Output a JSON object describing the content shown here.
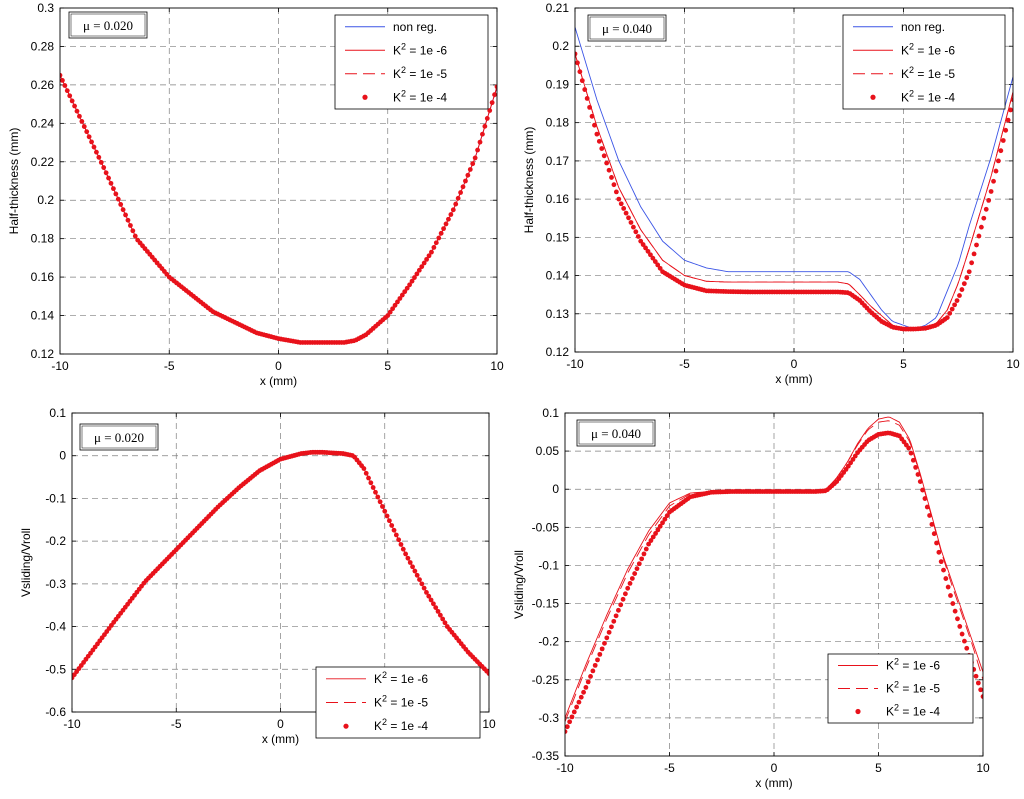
{
  "colors": {
    "red": "#e8121b",
    "blue": "#3b55e6",
    "grid": "#7f7f7f"
  },
  "chart_data": [
    {
      "type": "line",
      "annotation": "μ = 0.020",
      "xlabel": "x (mm)",
      "ylabel": "Half-thickness (mm)",
      "xlim": [
        -10,
        10
      ],
      "ylim": [
        0.12,
        0.3
      ],
      "xticks": [
        -10,
        -5,
        0,
        5,
        10
      ],
      "yticks": [
        0.12,
        0.14,
        0.16,
        0.18,
        0.2,
        0.22,
        0.24,
        0.26,
        0.28,
        0.3
      ],
      "ytick_labels": [
        "0.12",
        "0.14",
        "0.16",
        "0.18",
        "0.2",
        "0.22",
        "0.24",
        "0.26",
        "0.28",
        "0.3"
      ],
      "grid": true,
      "legend_position": "top-right",
      "series": [
        {
          "name": "non reg.",
          "style": "line-blue",
          "x": [
            -10,
            -8,
            -6.5,
            -5,
            -3,
            -1,
            0,
            1,
            2,
            3,
            3.5,
            4,
            5,
            6,
            7,
            8,
            9,
            10
          ],
          "y": [
            0.265,
            0.217,
            0.18,
            0.16,
            0.142,
            0.131,
            0.128,
            0.126,
            0.126,
            0.126,
            0.127,
            0.13,
            0.14,
            0.156,
            0.173,
            0.195,
            0.222,
            0.259
          ]
        },
        {
          "name": "K2 = 1e -6",
          "style": "line-red",
          "x": [
            -10,
            -8,
            -6.5,
            -5,
            -3,
            -1,
            0,
            1,
            2,
            3,
            3.5,
            4,
            5,
            6,
            7,
            8,
            9,
            10
          ],
          "y": [
            0.265,
            0.217,
            0.18,
            0.16,
            0.142,
            0.131,
            0.128,
            0.126,
            0.126,
            0.126,
            0.127,
            0.13,
            0.14,
            0.156,
            0.173,
            0.195,
            0.222,
            0.259
          ]
        },
        {
          "name": "K2 = 1e -5",
          "style": "dash-red",
          "x": [
            -10,
            -8,
            -6.5,
            -5,
            -3,
            -1,
            0,
            1,
            2,
            3,
            3.5,
            4,
            5,
            6,
            7,
            8,
            9,
            10
          ],
          "y": [
            0.265,
            0.217,
            0.18,
            0.16,
            0.142,
            0.131,
            0.128,
            0.126,
            0.126,
            0.126,
            0.127,
            0.13,
            0.14,
            0.156,
            0.173,
            0.195,
            0.222,
            0.259
          ]
        },
        {
          "name": "K2 = 1e -4",
          "style": "dots-red",
          "x": [
            -10,
            -8,
            -6.5,
            -5,
            -3,
            -1,
            0,
            1,
            2,
            3,
            3.5,
            4,
            5,
            6,
            7,
            8,
            9,
            10
          ],
          "y": [
            0.265,
            0.217,
            0.18,
            0.16,
            0.142,
            0.131,
            0.128,
            0.126,
            0.126,
            0.126,
            0.127,
            0.13,
            0.14,
            0.156,
            0.173,
            0.195,
            0.222,
            0.259
          ]
        }
      ]
    },
    {
      "type": "line",
      "annotation": "μ = 0.040",
      "xlabel": "x (mm)",
      "ylabel": "Half-thickness (mm)",
      "xlim": [
        -10,
        10
      ],
      "ylim": [
        0.12,
        0.21
      ],
      "xticks": [
        -10,
        -5,
        0,
        5,
        10
      ],
      "yticks": [
        0.12,
        0.13,
        0.14,
        0.15,
        0.16,
        0.17,
        0.18,
        0.19,
        0.2,
        0.21
      ],
      "ytick_labels": [
        "0.12",
        "0.13",
        "0.14",
        "0.15",
        "0.16",
        "0.17",
        "0.18",
        "0.19",
        "0.2",
        "0.21"
      ],
      "grid": true,
      "legend_position": "top-right",
      "series": [
        {
          "name": "non reg.",
          "style": "line-blue",
          "x": [
            -10,
            -9,
            -8,
            -7,
            -6,
            -5,
            -4,
            -3,
            -2,
            -1,
            0,
            1,
            2,
            2.5,
            3,
            3.5,
            4,
            4.5,
            5,
            5.5,
            6,
            6.5,
            7,
            7.5,
            8,
            9,
            10
          ],
          "y": [
            0.205,
            0.186,
            0.17,
            0.158,
            0.149,
            0.144,
            0.142,
            0.141,
            0.141,
            0.141,
            0.141,
            0.141,
            0.141,
            0.141,
            0.139,
            0.135,
            0.131,
            0.128,
            0.127,
            0.126,
            0.127,
            0.129,
            0.136,
            0.143,
            0.153,
            0.171,
            0.192
          ]
        },
        {
          "name": "K2 = 1e -6",
          "style": "line-red",
          "x": [
            -10,
            -9,
            -8,
            -7,
            -6,
            -5,
            -4,
            -3,
            -2,
            -1,
            0,
            1,
            2,
            2.5,
            3,
            3.5,
            4,
            4.5,
            5,
            5.5,
            6,
            6.5,
            7,
            7.5,
            8,
            9,
            10
          ],
          "y": [
            0.198,
            0.179,
            0.163,
            0.152,
            0.144,
            0.14,
            0.1385,
            0.1383,
            0.1383,
            0.1383,
            0.1383,
            0.1383,
            0.1383,
            0.1378,
            0.135,
            0.132,
            0.1295,
            0.127,
            0.126,
            0.1262,
            0.1265,
            0.1275,
            0.131,
            0.138,
            0.147,
            0.166,
            0.188
          ]
        },
        {
          "name": "K2 = 1e -5",
          "style": "dash-red",
          "x": [
            -10,
            -9,
            -8,
            -7,
            -6,
            -5,
            -4,
            -3,
            -2,
            -1,
            0,
            1,
            2,
            2.5,
            3,
            3.5,
            4,
            4.5,
            5,
            5.5,
            6,
            6.5,
            7,
            7.5,
            8,
            9,
            10
          ],
          "y": [
            0.198,
            0.179,
            0.163,
            0.152,
            0.144,
            0.14,
            0.1385,
            0.1383,
            0.1383,
            0.1383,
            0.1383,
            0.1383,
            0.1383,
            0.1378,
            0.135,
            0.132,
            0.1295,
            0.127,
            0.126,
            0.1262,
            0.1265,
            0.1275,
            0.131,
            0.138,
            0.147,
            0.166,
            0.188
          ]
        },
        {
          "name": "K2 = 1e -4",
          "style": "dots-red",
          "x": [
            -10,
            -9,
            -8,
            -7,
            -6,
            -5,
            -4,
            -3,
            -2,
            -1,
            0,
            1,
            2,
            2.5,
            3,
            3.5,
            4,
            4.5,
            5,
            5.5,
            6,
            6.5,
            7,
            7.5,
            8,
            9,
            10
          ],
          "y": [
            0.198,
            0.177,
            0.16,
            0.149,
            0.141,
            0.1375,
            0.136,
            0.1358,
            0.1357,
            0.1357,
            0.1357,
            0.1357,
            0.1357,
            0.1355,
            0.1335,
            0.1305,
            0.128,
            0.1265,
            0.126,
            0.126,
            0.1262,
            0.127,
            0.129,
            0.134,
            0.141,
            0.162,
            0.186
          ]
        }
      ]
    },
    {
      "type": "line",
      "annotation": "μ = 0.020",
      "xlabel": "x (mm)",
      "ylabel": "Vsliding/Vroll",
      "xlim": [
        -10,
        10
      ],
      "ylim": [
        -0.6,
        0.1
      ],
      "xticks": [
        -10,
        -5,
        0,
        5,
        10
      ],
      "yticks": [
        -0.6,
        -0.5,
        -0.4,
        -0.3,
        -0.2,
        -0.1,
        0,
        0.1
      ],
      "ytick_labels": [
        "-0.6",
        "-0.5",
        "-0.4",
        "-0.3",
        "-0.2",
        "-0.1",
        "0",
        "0.1"
      ],
      "grid": true,
      "legend_position": "bottom-right",
      "series": [
        {
          "name": "K2 = 1e -6",
          "style": "line-red",
          "x": [
            -10,
            -8,
            -6.5,
            -5,
            -3,
            -2,
            -1,
            0,
            1,
            1.5,
            2,
            3,
            3.5,
            4,
            5,
            6,
            7,
            8,
            9,
            10
          ],
          "y": [
            -0.52,
            -0.39,
            -0.295,
            -0.22,
            -0.12,
            -0.075,
            -0.035,
            -0.008,
            0.005,
            0.008,
            0.008,
            0.005,
            0,
            -0.03,
            -0.13,
            -0.23,
            -0.32,
            -0.4,
            -0.46,
            -0.51
          ]
        },
        {
          "name": "K2 = 1e -5",
          "style": "dash-red",
          "x": [
            -10,
            -8,
            -6.5,
            -5,
            -3,
            -2,
            -1,
            0,
            1,
            1.5,
            2,
            3,
            3.5,
            4,
            5,
            6,
            7,
            8,
            9,
            10
          ],
          "y": [
            -0.52,
            -0.39,
            -0.295,
            -0.22,
            -0.12,
            -0.075,
            -0.035,
            -0.008,
            0.005,
            0.008,
            0.008,
            0.005,
            0,
            -0.03,
            -0.13,
            -0.23,
            -0.32,
            -0.4,
            -0.46,
            -0.51
          ]
        },
        {
          "name": "K2 = 1e -4",
          "style": "dots-red",
          "x": [
            -10,
            -8,
            -6.5,
            -5,
            -3,
            -2,
            -1,
            0,
            1,
            1.5,
            2,
            3,
            3.5,
            4,
            5,
            6,
            7,
            8,
            9,
            10
          ],
          "y": [
            -0.52,
            -0.39,
            -0.295,
            -0.22,
            -0.12,
            -0.075,
            -0.035,
            -0.008,
            0.005,
            0.008,
            0.008,
            0.005,
            0,
            -0.03,
            -0.13,
            -0.23,
            -0.32,
            -0.4,
            -0.46,
            -0.51
          ]
        }
      ]
    },
    {
      "type": "line",
      "annotation": "μ = 0.040",
      "xlabel": "x (mm)",
      "ylabel": "Vsliding/Vroll",
      "xlim": [
        -10,
        10
      ],
      "ylim": [
        -0.35,
        0.1
      ],
      "xticks": [
        -10,
        -5,
        0,
        5,
        10
      ],
      "yticks": [
        -0.35,
        -0.3,
        -0.25,
        -0.2,
        -0.15,
        -0.1,
        -0.05,
        0,
        0.05,
        0.1
      ],
      "ytick_labels": [
        "-0.35",
        "-0.3",
        "-0.25",
        "-0.2",
        "-0.15",
        "-0.1",
        "-0.05",
        "0",
        "0.05",
        "0.1"
      ],
      "grid": true,
      "legend_position": "bottom-right",
      "series": [
        {
          "name": "K2 = 1e -6",
          "style": "line-red",
          "x": [
            -10,
            -9,
            -8,
            -7,
            -6,
            -5,
            -4,
            -3,
            -2,
            -1,
            0,
            1,
            2,
            2.5,
            3,
            3.5,
            4,
            4.5,
            5,
            5.5,
            6,
            6.5,
            7,
            7.5,
            8,
            8.5,
            9,
            9.5,
            10
          ],
          "y": [
            -0.3,
            -0.23,
            -0.165,
            -0.105,
            -0.055,
            -0.018,
            -0.005,
            -0.003,
            -0.003,
            -0.003,
            -0.003,
            -0.003,
            -0.003,
            0,
            0.015,
            0.035,
            0.06,
            0.08,
            0.092,
            0.095,
            0.088,
            0.065,
            0.02,
            -0.03,
            -0.08,
            -0.12,
            -0.16,
            -0.2,
            -0.24
          ]
        },
        {
          "name": "K2 = 1e -5",
          "style": "dash-red",
          "x": [
            -10,
            -9,
            -8,
            -7,
            -6,
            -5,
            -4,
            -3,
            -2,
            -1,
            0,
            1,
            2,
            2.5,
            3,
            3.5,
            4,
            4.5,
            5,
            5.5,
            6,
            6.5,
            7,
            7.5,
            8,
            8.5,
            9,
            9.5,
            10
          ],
          "y": [
            -0.305,
            -0.235,
            -0.17,
            -0.11,
            -0.06,
            -0.022,
            -0.006,
            -0.003,
            -0.003,
            -0.003,
            -0.003,
            -0.003,
            -0.003,
            0,
            0.015,
            0.035,
            0.058,
            0.078,
            0.088,
            0.09,
            0.084,
            0.062,
            0.018,
            -0.032,
            -0.082,
            -0.125,
            -0.165,
            -0.205,
            -0.25
          ]
        },
        {
          "name": "K2 = 1e -4",
          "style": "dots-red",
          "x": [
            -10,
            -9,
            -8,
            -7,
            -6,
            -5,
            -4,
            -3,
            -2,
            -1,
            0,
            1,
            2,
            2.5,
            3,
            3.5,
            4,
            4.5,
            5,
            5.5,
            6,
            6.5,
            7,
            7.5,
            8,
            8.5,
            9,
            9.5,
            10
          ],
          "y": [
            -0.318,
            -0.26,
            -0.195,
            -0.13,
            -0.072,
            -0.03,
            -0.01,
            -0.004,
            -0.003,
            -0.003,
            -0.003,
            -0.003,
            -0.003,
            -0.002,
            0.01,
            0.028,
            0.048,
            0.064,
            0.072,
            0.074,
            0.07,
            0.052,
            0.01,
            -0.04,
            -0.095,
            -0.145,
            -0.19,
            -0.232,
            -0.272
          ]
        }
      ]
    }
  ]
}
